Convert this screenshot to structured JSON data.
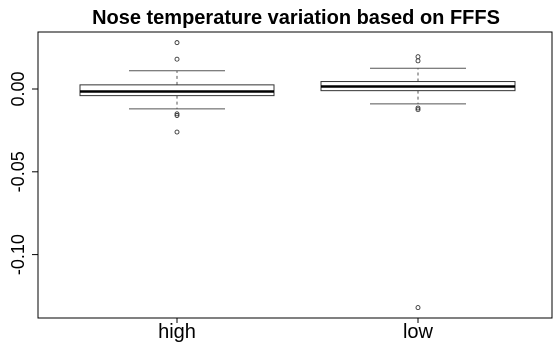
{
  "chart_data": {
    "type": "boxplot",
    "title": "Nose temperature variation based on FFFS",
    "xlabel": "",
    "ylabel": "",
    "categories": [
      "high",
      "low"
    ],
    "ylim": [
      -0.14,
      0.035
    ],
    "yticks": [
      0.0,
      -0.05,
      -0.1
    ],
    "ytick_labels": [
      "0.00",
      "-0.05",
      "-0.10"
    ],
    "grid": false,
    "boxes": [
      {
        "category": "high",
        "whisker_low": -0.012,
        "q1": -0.004,
        "median": -0.0015,
        "q3": 0.0025,
        "whisker_high": 0.011,
        "outliers": [
          0.028,
          0.018,
          -0.015,
          -0.016,
          -0.026
        ]
      },
      {
        "category": "low",
        "whisker_low": -0.009,
        "q1": -0.001,
        "median": 0.0015,
        "q3": 0.0045,
        "whisker_high": 0.0125,
        "outliers": [
          0.0195,
          0.017,
          -0.0115,
          -0.0125,
          -0.132
        ]
      }
    ]
  }
}
